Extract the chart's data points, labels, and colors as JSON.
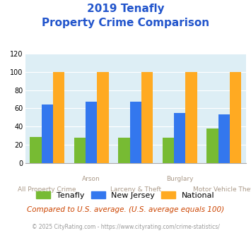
{
  "title_line1": "2019 Tenafly",
  "title_line2": "Property Crime Comparison",
  "categories": [
    "All Property Crime",
    "Arson",
    "Larceny & Theft",
    "Burglary",
    "Motor Vehicle Theft"
  ],
  "tenafly": [
    29,
    28,
    28,
    28,
    38
  ],
  "new_jersey": [
    64,
    67,
    67,
    55,
    53
  ],
  "national": [
    100,
    100,
    100,
    100,
    100
  ],
  "colors": {
    "tenafly": "#77bb33",
    "new_jersey": "#3377ee",
    "national": "#ffaa22"
  },
  "ylim": [
    0,
    120
  ],
  "yticks": [
    0,
    20,
    40,
    60,
    80,
    100,
    120
  ],
  "title_color": "#2255cc",
  "xlabel_color": "#aa9988",
  "note": "Compared to U.S. average. (U.S. average equals 100)",
  "footer": "© 2025 CityRating.com - https://www.cityrating.com/crime-statistics/",
  "plot_bg": "#ddeef5",
  "fig_bg": "#ffffff",
  "note_color": "#cc4400",
  "footer_color": "#999999"
}
